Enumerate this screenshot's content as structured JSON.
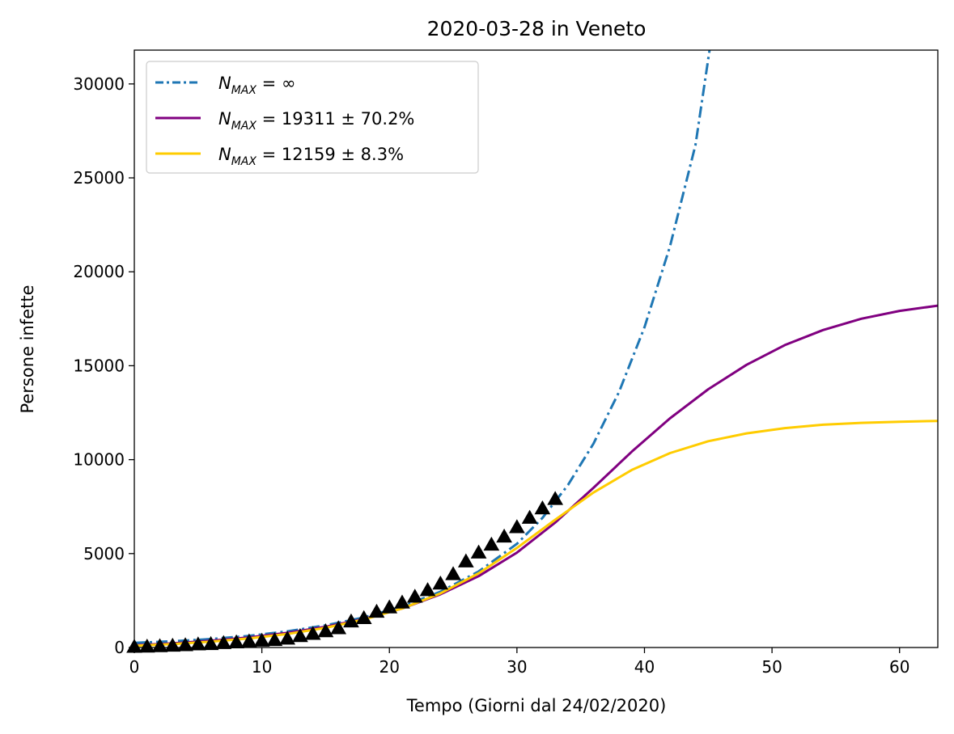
{
  "chart_data": {
    "type": "line",
    "title": "2020-03-28 in Veneto",
    "xlabel": "Tempo (Giorni dal 24/02/2020)",
    "ylabel": "Persone infette",
    "xlim": [
      0,
      63
    ],
    "ylim": [
      0,
      31800
    ],
    "xticks": [
      0,
      10,
      20,
      30,
      40,
      50,
      60
    ],
    "yticks": [
      0,
      5000,
      10000,
      15000,
      20000,
      25000,
      30000
    ],
    "grid": false,
    "legend_position": "top-left",
    "series": [
      {
        "label_main": "N",
        "label_sub": "MAX",
        "label_rest": " = ∞",
        "color": "#1f77b4",
        "style": "dashdot",
        "x": [
          0,
          3,
          6,
          9,
          12,
          15,
          18,
          21,
          24,
          27,
          30,
          32,
          34,
          36,
          38,
          40,
          42,
          44,
          45.1
        ],
        "y": [
          250,
          330,
          450,
          620,
          860,
          1180,
          1600,
          2180,
          2970,
          4050,
          5520,
          6900,
          8650,
          10850,
          13600,
          17050,
          21350,
          26750,
          31800
        ]
      },
      {
        "label_main": "N",
        "label_sub": "MAX",
        "label_rest": " = 19311 ± 70.2%",
        "color": "#800080",
        "style": "solid",
        "x": [
          0,
          3,
          6,
          9,
          12,
          15,
          18,
          21,
          24,
          27,
          30,
          33,
          36,
          39,
          42,
          45,
          48,
          51,
          54,
          57,
          60,
          63
        ],
        "y": [
          120,
          220,
          360,
          540,
          780,
          1100,
          1520,
          2080,
          2830,
          3800,
          5050,
          6650,
          8500,
          10420,
          12200,
          13750,
          15050,
          16100,
          16900,
          17500,
          17920,
          18200
        ]
      },
      {
        "label_main": "N",
        "label_sub": "MAX",
        "label_rest": " = 12159 ± 8.3%",
        "color": "#ffcc00",
        "style": "solid",
        "x": [
          0,
          3,
          6,
          9,
          12,
          15,
          18,
          21,
          24,
          27,
          30,
          33,
          36,
          39,
          42,
          45,
          48,
          51,
          54,
          57,
          60,
          63
        ],
        "y": [
          90,
          180,
          310,
          480,
          720,
          1050,
          1490,
          2080,
          2880,
          3950,
          5300,
          6800,
          8250,
          9450,
          10350,
          10980,
          11400,
          11680,
          11860,
          11960,
          12020,
          12060
        ]
      }
    ],
    "observed": {
      "marker": "triangle",
      "color": "#000000",
      "x": [
        0,
        1,
        2,
        3,
        4,
        5,
        6,
        7,
        8,
        9,
        10,
        11,
        12,
        13,
        14,
        15,
        16,
        17,
        18,
        19,
        20,
        21,
        22,
        23,
        24,
        25,
        26,
        27,
        28,
        29,
        30,
        31,
        32,
        33
      ],
      "y": [
        30,
        45,
        65,
        90,
        120,
        160,
        180,
        230,
        270,
        320,
        360,
        390,
        470,
        600,
        720,
        860,
        1020,
        1380,
        1560,
        1900,
        2130,
        2390,
        2700,
        3050,
        3400,
        3900,
        4580,
        5050,
        5470,
        5900,
        6400,
        6900,
        7400,
        7900
      ]
    }
  }
}
